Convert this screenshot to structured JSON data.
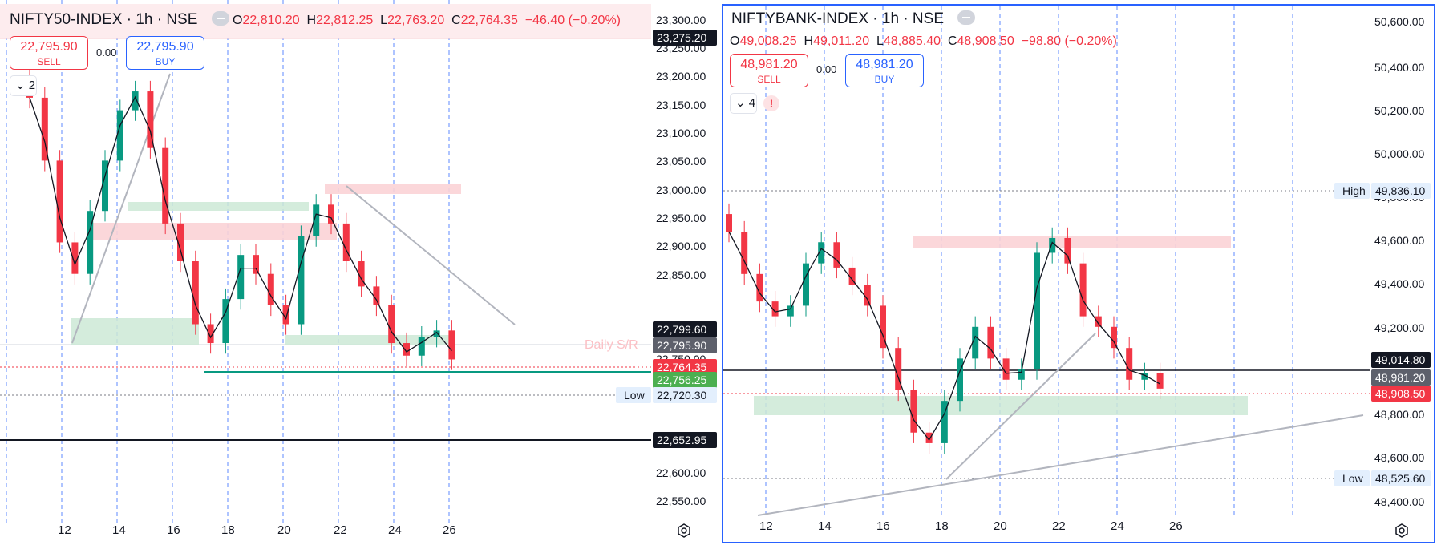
{
  "colors": {
    "up": "#089981",
    "down": "#f23645",
    "grid": "#2962ff",
    "resistance": "#f7c9cc",
    "support": "#cde9d6",
    "text": "#131722"
  },
  "charts": [
    {
      "title": "NIFTY50-INDEX · 1h · NSE",
      "ohlc": {
        "o": "22,810.20",
        "h": "22,812.25",
        "l": "22,763.20",
        "c": "22,764.35",
        "chg": "−46.40 (−0.20%)"
      },
      "trade": {
        "sell_price": "22,795.90",
        "sell_label": "SELL",
        "spread": "0.00",
        "buy_price": "22,795.90",
        "buy_label": "BUY"
      },
      "indicator_count": "2",
      "annotation": "Daily S/R",
      "y_ticks": [
        "23,300.00",
        "23,250.00",
        "23,200.00",
        "23,150.00",
        "23,100.00",
        "23,050.00",
        "23,000.00",
        "22,950.00",
        "22,900.00",
        "22,850.00",
        "22,750.00",
        "22,700.00",
        "22,600.00",
        "22,550.00"
      ],
      "price_tags": [
        {
          "text": "23,275.20",
          "style": "dark"
        },
        {
          "text": "22,799.60",
          "style": "dark"
        },
        {
          "text": "22,795.90",
          "style": "gray"
        },
        {
          "text": "22,764.35",
          "style": "red"
        },
        {
          "text": "22,756.25",
          "style": "green"
        },
        {
          "text": "22,720.30",
          "style": "label",
          "label": "Low"
        },
        {
          "text": "22,652.95",
          "style": "dark"
        }
      ],
      "x_ticks": [
        "12",
        "14",
        "16",
        "18",
        "20",
        "22",
        "24",
        "26"
      ],
      "chart_data": {
        "type": "candlestick",
        "ylim": [
          22520,
          23320
        ],
        "close_series": [
          23180,
          23080,
          22950,
          22900,
          23000,
          23080,
          23160,
          23190,
          23100,
          22980,
          22920,
          22820,
          22790,
          22860,
          22930,
          22900,
          22850,
          22820,
          22960,
          23010,
          22980,
          22920,
          22880,
          22850,
          22790,
          22770,
          22800,
          22810,
          22764
        ]
      }
    },
    {
      "title": "NIFTYBANK-INDEX · 1h · NSE",
      "ohlc": {
        "o": "49,008.25",
        "h": "49,011.20",
        "l": "48,885.40",
        "c": "48,908.50",
        "chg": "−98.80 (−0.20%)"
      },
      "trade": {
        "sell_price": "48,981.20",
        "sell_label": "SELL",
        "spread": "0.00",
        "buy_price": "48,981.20",
        "buy_label": "BUY"
      },
      "indicator_count": "4",
      "warning": "!",
      "y_ticks": [
        "50,600.00",
        "50,400.00",
        "50,200.00",
        "50,000.00",
        "49,800.00",
        "49,600.00",
        "49,400.00",
        "49,200.00",
        "48,800.00",
        "48,600.00",
        "48,400.00"
      ],
      "price_tags": [
        {
          "text": "49,836.10",
          "style": "label",
          "label": "High"
        },
        {
          "text": "49,014.80",
          "style": "dark"
        },
        {
          "text": "48,981.20",
          "style": "gray"
        },
        {
          "text": "48,908.50",
          "style": "red"
        },
        {
          "text": "48,525.60",
          "style": "label",
          "label": "Low"
        }
      ],
      "x_ticks": [
        "12",
        "14",
        "16",
        "18",
        "20",
        "22",
        "24",
        "26"
      ],
      "chart_data": {
        "type": "candlestick",
        "ylim": [
          48320,
          50700
        ],
        "close_series": [
          49650,
          49450,
          49320,
          49250,
          49300,
          49500,
          49600,
          49480,
          49400,
          49300,
          49100,
          48900,
          48700,
          48650,
          48850,
          49050,
          49200,
          49050,
          48950,
          49000,
          49550,
          49620,
          49500,
          49250,
          49200,
          49100,
          48950,
          48980,
          48908
        ]
      }
    }
  ]
}
